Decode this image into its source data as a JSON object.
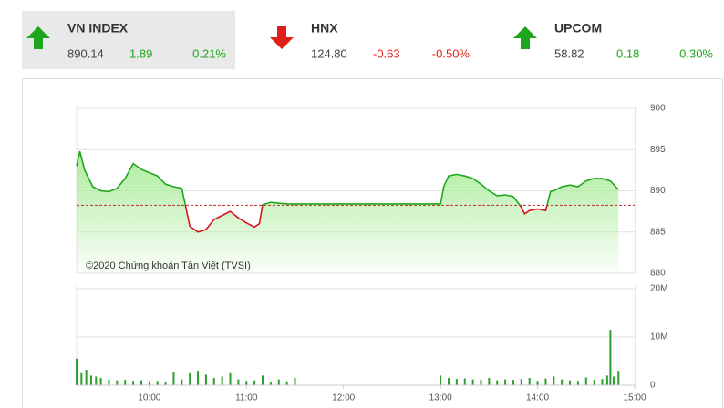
{
  "header": {
    "indices": [
      {
        "name": "VN INDEX",
        "value": "890.14",
        "change": "1.89",
        "percent": "0.21%",
        "direction": "up",
        "selected": true
      },
      {
        "name": "HNX",
        "value": "124.80",
        "change": "-0.63",
        "percent": "-0.50%",
        "direction": "down",
        "selected": false
      },
      {
        "name": "UPCOM",
        "value": "58.82",
        "change": "0.18",
        "percent": "0.30%",
        "direction": "up",
        "selected": false
      }
    ]
  },
  "watermark": "©2020 Chứng khoán Tân Việt (TVSI)",
  "chart_data": [
    {
      "type": "line",
      "color_up": "#1fa61f",
      "color_down": "#d4161c",
      "fill": "#a6eb94",
      "reference": 888.25,
      "xlim": [
        "09:15",
        "15:00"
      ],
      "ylim": [
        880,
        900
      ],
      "yticks": [
        880,
        885,
        890,
        895,
        900
      ],
      "grid": true,
      "x": [
        "09:15",
        "09:17",
        "09:20",
        "09:25",
        "09:30",
        "09:35",
        "09:40",
        "09:45",
        "09:50",
        "09:55",
        "10:00",
        "10:05",
        "10:10",
        "10:15",
        "10:20",
        "10:22",
        "10:25",
        "10:30",
        "10:35",
        "10:40",
        "10:45",
        "10:50",
        "10:55",
        "11:00",
        "11:05",
        "11:08",
        "11:10",
        "11:15",
        "11:20",
        "11:25",
        "11:30",
        "13:00",
        "13:02",
        "13:05",
        "13:10",
        "13:15",
        "13:20",
        "13:25",
        "13:30",
        "13:35",
        "13:40",
        "13:45",
        "13:50",
        "13:52",
        "13:55",
        "14:00",
        "14:05",
        "14:08",
        "14:10",
        "14:15",
        "14:20",
        "14:25",
        "14:30",
        "14:35",
        "14:40",
        "14:45",
        "14:50"
      ],
      "values": [
        893,
        894.8,
        892.5,
        890.5,
        890,
        889.9,
        890.3,
        891.5,
        893.3,
        892.6,
        892.2,
        891.8,
        890.8,
        890.5,
        890.3,
        888.5,
        885.7,
        885,
        885.3,
        886.5,
        887,
        887.5,
        886.7,
        886.1,
        885.6,
        886,
        888.3,
        888.6,
        888.5,
        888.4,
        888.4,
        888.4,
        890.5,
        891.8,
        892,
        891.8,
        891.5,
        890.8,
        890,
        889.4,
        889.5,
        889.3,
        888,
        887.2,
        887.6,
        887.8,
        887.6,
        889.9,
        890,
        890.5,
        890.7,
        890.5,
        891.2,
        891.5,
        891.5,
        891.2,
        890.14
      ]
    },
    {
      "type": "bar",
      "color": "#2e9e2e",
      "xlim": [
        "09:15",
        "15:00"
      ],
      "xticks": [
        "10:00",
        "11:00",
        "12:00",
        "13:00",
        "14:00",
        "15:00"
      ],
      "ylim": [
        0,
        20000000
      ],
      "yticks": [
        0,
        {
          "value": 10000000,
          "label": "10M"
        },
        {
          "value": 20000000,
          "label": "20M"
        }
      ],
      "grid": true,
      "x": [
        "09:15",
        "09:18",
        "09:21",
        "09:24",
        "09:27",
        "09:30",
        "09:35",
        "09:40",
        "09:45",
        "09:50",
        "09:55",
        "10:00",
        "10:05",
        "10:10",
        "10:15",
        "10:20",
        "10:25",
        "10:30",
        "10:35",
        "10:40",
        "10:45",
        "10:50",
        "10:55",
        "11:00",
        "11:05",
        "11:10",
        "11:15",
        "11:20",
        "11:25",
        "11:30",
        "13:00",
        "13:05",
        "13:10",
        "13:15",
        "13:20",
        "13:25",
        "13:30",
        "13:35",
        "13:40",
        "13:45",
        "13:50",
        "13:55",
        "14:00",
        "14:05",
        "14:10",
        "14:15",
        "14:20",
        "14:25",
        "14:30",
        "14:35",
        "14:40",
        "14:43",
        "14:45",
        "14:47",
        "14:50"
      ],
      "values": [
        5500000,
        2500000,
        3200000,
        2000000,
        1800000,
        1500000,
        1200000,
        1000000,
        1100000,
        900000,
        1000000,
        800000,
        900000,
        700000,
        2800000,
        1200000,
        2500000,
        3000000,
        2200000,
        1500000,
        1800000,
        2500000,
        1200000,
        900000,
        1000000,
        2000000,
        700000,
        1200000,
        800000,
        1500000,
        2000000,
        1500000,
        1300000,
        1400000,
        1200000,
        1100000,
        1500000,
        1000000,
        1200000,
        1100000,
        1300000,
        1500000,
        900000,
        1400000,
        1800000,
        1200000,
        1000000,
        900000,
        1600000,
        1100000,
        1300000,
        2000000,
        11500000,
        1800000,
        3000000
      ]
    }
  ]
}
